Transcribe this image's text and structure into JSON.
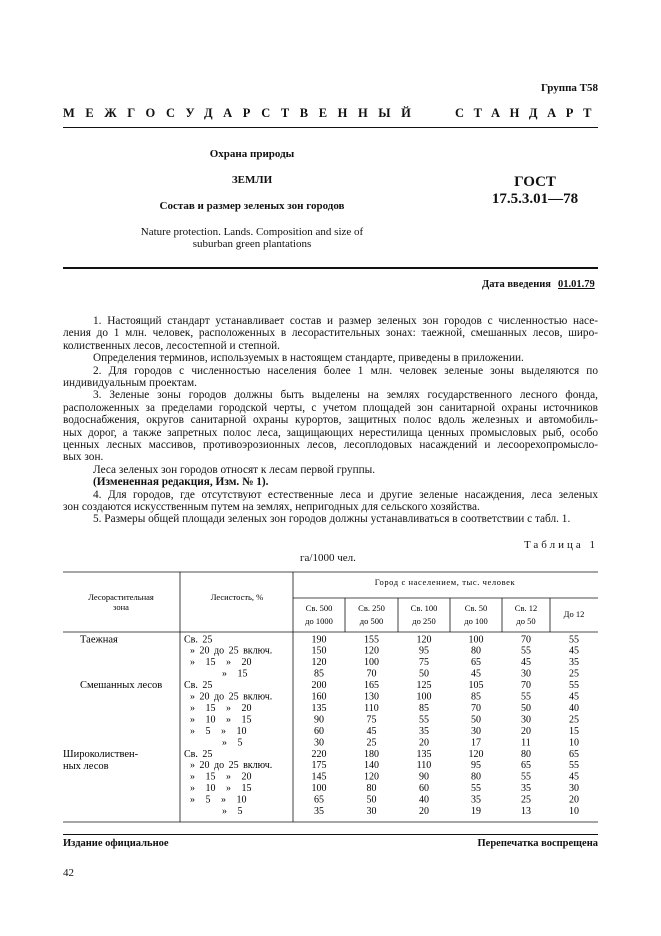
{
  "header": {
    "group": "Группа Т58",
    "banner_left": "МЕЖГОСУДАРСТВЕННЫЙ",
    "banner_right": "СТАНДАРТ",
    "category": "Охрана природы",
    "subject": "ЗЕМЛИ",
    "title": "Состав и размер зеленых зон городов",
    "english_title": [
      "Nature protection. Lands. Composition and size of",
      "suburban green plantations"
    ],
    "gost_label": "ГОСТ",
    "gost_number": "17.5.3.01—78",
    "date_label": "Дата введения",
    "date_value": "01.01.79"
  },
  "body": {
    "paragraphs": [
      {
        "indent": true,
        "bold": false,
        "lines": [
          "1. Настоящий стандарт устанавливает состав и размер зеленых зон городов с численностью насе-",
          "ления до 1 млн. человек, расположенных в лесорастительных зонах: таежной, смешанных лесов, широ-",
          "колиственных лесов, лесостепной и степной."
        ]
      },
      {
        "indent": true,
        "bold": false,
        "lines": [
          "Определения терминов, используемых в настоящем стандарте, приведены в приложении."
        ]
      },
      {
        "indent": true,
        "bold": false,
        "lines": [
          "2. Для городов с численностью населения более 1 млн. человек зеленые зоны выделяются по",
          "индивидуальным проектам."
        ]
      },
      {
        "indent": true,
        "bold": false,
        "lines": [
          "3. Зеленые зоны городов должны быть выделены на землях государственного лесного фонда,",
          "расположенных за пределами городской черты, с учетом площадей зон санитарной охраны источников",
          "водоснабжения, округов санитарной охраны курортов, защитных полос вдоль железных и автомобиль-",
          "ных дорог, а также запретных полос леса, защищающих нерестилища ценных промысловых рыб, особо",
          "ценных лесных массивов, противоэрозионных лесов, лесоплодовых насаждений и лесоорехопромысло-",
          "вых зон."
        ]
      },
      {
        "indent": true,
        "bold": false,
        "lines": [
          "Леса зеленых зон городов относят к лесам первой группы."
        ]
      },
      {
        "indent": true,
        "bold": true,
        "lines": [
          "(Измененная редакция, Изм. № 1)."
        ]
      },
      {
        "indent": true,
        "bold": false,
        "lines": [
          "4. Для городов, где отсутствуют естественные леса и другие зеленые насаждения, леса зеленых",
          "зон создаются искусственным путем на землях, непригодных для сельского хозяйства."
        ]
      },
      {
        "indent": true,
        "bold": false,
        "lines": [
          "5. Размеры общей площади зеленых зон городов должны устанавливаться в соответствии с табл. 1."
        ]
      }
    ]
  },
  "table": {
    "caption": "Таблица 1",
    "unit": "га/1000 чел.",
    "zone_header": [
      "Лесорастительная",
      "зона"
    ],
    "forest_header": "Лесистость, %",
    "population_header": "Город с населением, тыс. человек",
    "columns": [
      [
        "Св. 500",
        "до 1000"
      ],
      [
        "Св. 250",
        "до 500"
      ],
      [
        "Св. 100",
        "до 250"
      ],
      [
        "Св. 50",
        "до 100"
      ],
      [
        "Св. 12",
        "до 50"
      ],
      [
        "До 12"
      ]
    ],
    "groups": [
      {
        "zone": [
          "Таежная"
        ],
        "rows": [
          {
            "forest": "Св. 25",
            "values": [
              190,
              155,
              120,
              100,
              70,
              55
            ]
          },
          {
            "forest": "» 20 до 25 включ.",
            "values": [
              150,
              120,
              95,
              80,
              55,
              45
            ]
          },
          {
            "forest": "» 15 » 20",
            "values": [
              120,
              100,
              75,
              65,
              45,
              35
            ]
          },
          {
            "forest": "» 15",
            "values": [
              85,
              70,
              50,
              45,
              30,
              25
            ]
          }
        ]
      },
      {
        "zone": [
          "Смешанных лесов"
        ],
        "rows": [
          {
            "forest": "Св. 25",
            "values": [
              200,
              165,
              125,
              105,
              70,
              55
            ]
          },
          {
            "forest": "» 20 до 25 включ.",
            "values": [
              160,
              130,
              100,
              85,
              55,
              45
            ]
          },
          {
            "forest": "» 15 » 20",
            "values": [
              135,
              110,
              85,
              70,
              50,
              40
            ]
          },
          {
            "forest": "» 10 » 15",
            "values": [
              90,
              75,
              55,
              50,
              30,
              25
            ]
          },
          {
            "forest": "» 5 » 10",
            "values": [
              60,
              45,
              35,
              30,
              20,
              15
            ]
          },
          {
            "forest": "» 5",
            "values": [
              30,
              25,
              20,
              17,
              11,
              10
            ]
          }
        ]
      },
      {
        "zone": [
          "Широколиствен-",
          "ных лесов"
        ],
        "rows": [
          {
            "forest": "Св. 25",
            "values": [
              220,
              180,
              135,
              120,
              80,
              65
            ]
          },
          {
            "forest": "» 20 до 25 включ.",
            "values": [
              175,
              140,
              110,
              95,
              65,
              55
            ]
          },
          {
            "forest": "» 15 » 20",
            "values": [
              145,
              120,
              90,
              80,
              55,
              45
            ]
          },
          {
            "forest": "» 10 » 15",
            "values": [
              100,
              80,
              60,
              55,
              35,
              30
            ]
          },
          {
            "forest": "» 5 » 10",
            "values": [
              65,
              50,
              40,
              35,
              25,
              20
            ]
          },
          {
            "forest": "» 5",
            "values": [
              35,
              30,
              20,
              19,
              13,
              10
            ]
          }
        ]
      }
    ]
  },
  "footer": {
    "left": "Издание официальное",
    "right": "Перепечатка воспрещена",
    "page": "42"
  }
}
